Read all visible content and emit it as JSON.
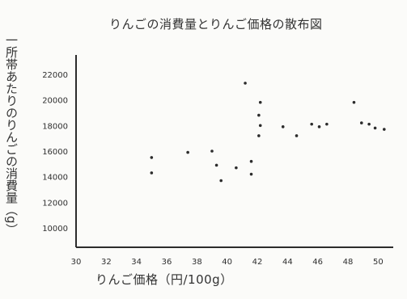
{
  "chart_data": {
    "type": "scatter",
    "title": "りんごの消費量とりんご価格の散布図",
    "xlabel": "りんご価格（円/100g）",
    "ylabel": "一所帯あたりのりんごの消費量（g）",
    "xlim": [
      30,
      51
    ],
    "ylim": [
      8500,
      23500
    ],
    "xticks": [
      "30",
      "32",
      "34",
      "36",
      "38",
      "40",
      "42",
      "44",
      "46",
      "48",
      "50"
    ],
    "yticks": [
      "10000",
      "12000",
      "14000",
      "16000",
      "18000",
      "20000",
      "22000"
    ],
    "points": [
      {
        "x": 35.0,
        "y": 15500
      },
      {
        "x": 35.0,
        "y": 14300
      },
      {
        "x": 37.4,
        "y": 15900
      },
      {
        "x": 39.0,
        "y": 16000
      },
      {
        "x": 39.3,
        "y": 14900
      },
      {
        "x": 39.6,
        "y": 13700
      },
      {
        "x": 40.6,
        "y": 14700
      },
      {
        "x": 41.2,
        "y": 21300
      },
      {
        "x": 41.6,
        "y": 15200
      },
      {
        "x": 41.6,
        "y": 14200
      },
      {
        "x": 42.2,
        "y": 19800
      },
      {
        "x": 42.1,
        "y": 18800
      },
      {
        "x": 42.2,
        "y": 18000
      },
      {
        "x": 42.1,
        "y": 17200
      },
      {
        "x": 43.7,
        "y": 17900
      },
      {
        "x": 44.6,
        "y": 17200
      },
      {
        "x": 45.6,
        "y": 18100
      },
      {
        "x": 46.1,
        "y": 17900
      },
      {
        "x": 46.6,
        "y": 18100
      },
      {
        "x": 48.4,
        "y": 19800
      },
      {
        "x": 48.9,
        "y": 18200
      },
      {
        "x": 49.4,
        "y": 18100
      },
      {
        "x": 49.8,
        "y": 17800
      },
      {
        "x": 50.4,
        "y": 17700
      }
    ]
  }
}
